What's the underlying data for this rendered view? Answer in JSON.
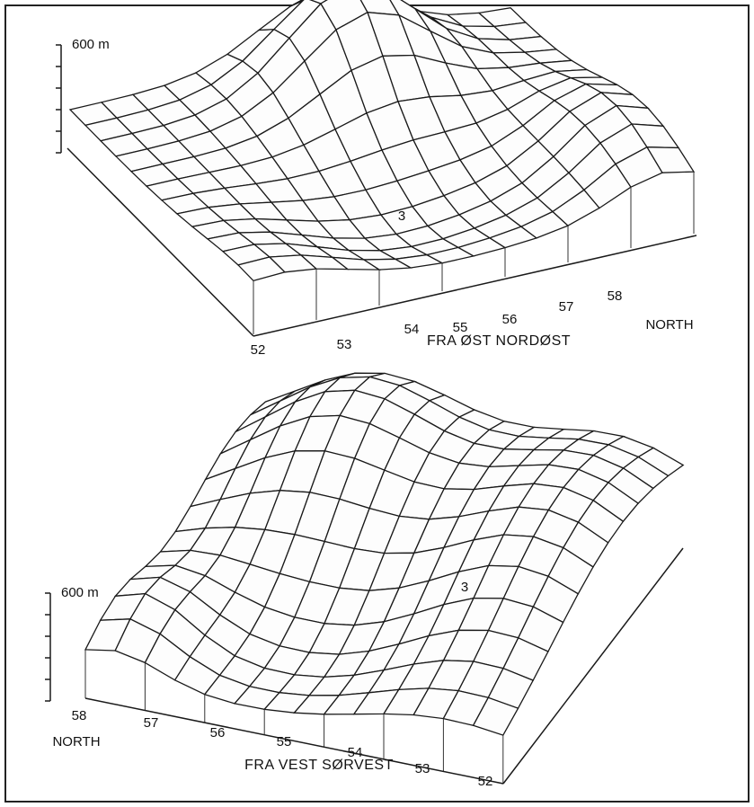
{
  "top_panel": {
    "scale_label": "600 m",
    "x_ticks": [
      "52",
      "53",
      "54",
      "55",
      "56",
      "57",
      "58"
    ],
    "north_label": "NORTH",
    "caption": "FRA ØST NORDØST",
    "marker": "3"
  },
  "bottom_panel": {
    "scale_label": "600 m",
    "x_ticks": [
      "58",
      "57",
      "56",
      "55",
      "54",
      "53",
      "52"
    ],
    "north_label": "NORTH",
    "caption": "FRA VEST SØRVEST",
    "marker": "3"
  }
}
